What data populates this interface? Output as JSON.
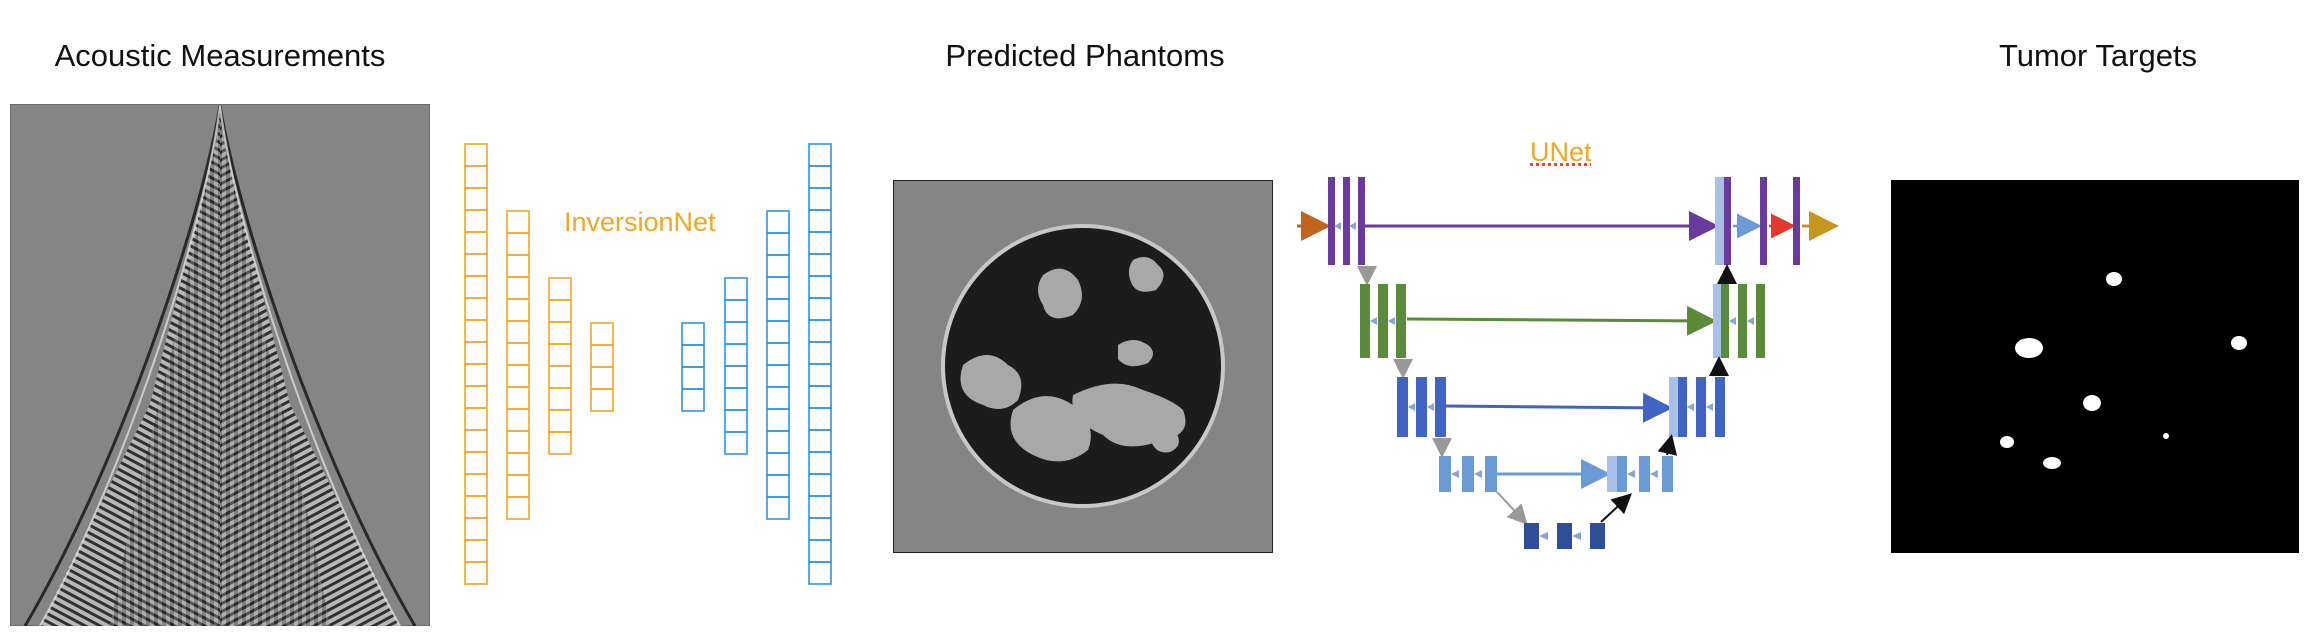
{
  "titles": {
    "acoustic": "Acoustic Measurements",
    "phantoms": "Predicted Phantoms",
    "tumors": "Tumor Targets"
  },
  "networks": {
    "inversionnet": "InversionNet",
    "unet": "UNet"
  },
  "colors": {
    "encoder_orange": "#f2a623",
    "decoder_blue": "#2f95e8",
    "unet_purple": "#6a3a9c",
    "unet_green": "#5a8a3a",
    "unet_blue": "#4a6fc2",
    "unet_lightblue": "#6b9bd6",
    "unet_darkblue": "#2f4d99",
    "arrow_orange": "#c0641e",
    "arrow_red": "#e23b2e",
    "arrow_gold": "#c8961e"
  }
}
